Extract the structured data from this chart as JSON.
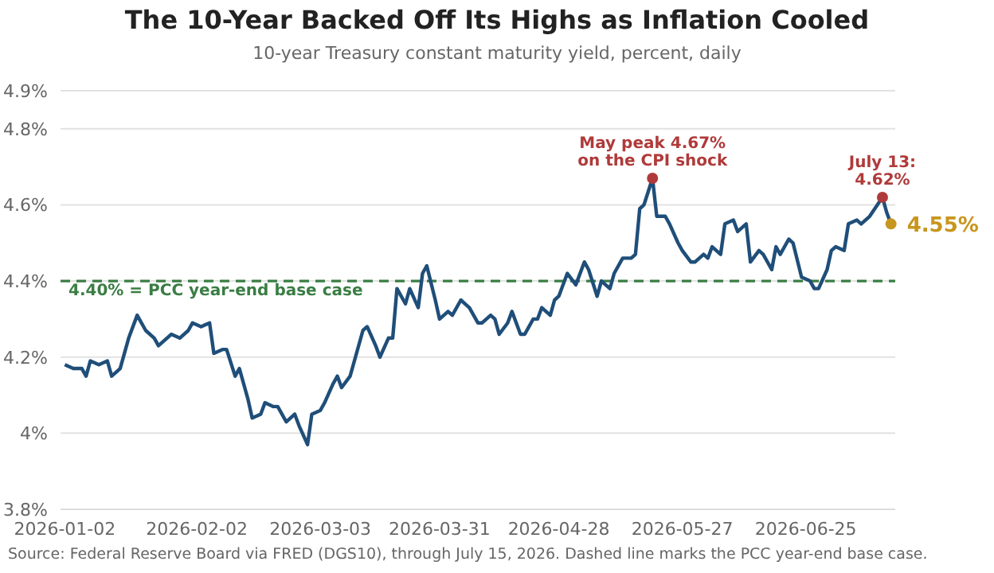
{
  "chart_data": {
    "type": "line",
    "title": "The 10-Year Backed Off Its Highs as Inflation Cooled",
    "subtitle": "10-year Treasury constant maturity yield, percent, daily",
    "x": [
      "2026-01-02",
      "2026-01-04",
      "2026-01-06",
      "2026-01-07",
      "2026-01-08",
      "2026-01-10",
      "2026-01-12",
      "2026-01-13",
      "2026-01-15",
      "2026-01-17",
      "2026-01-19",
      "2026-01-21",
      "2026-01-23",
      "2026-01-24",
      "2026-01-26",
      "2026-01-27",
      "2026-01-29",
      "2026-01-31",
      "2026-02-01",
      "2026-02-03",
      "2026-02-05",
      "2026-02-06",
      "2026-02-08",
      "2026-02-09",
      "2026-02-11",
      "2026-02-12",
      "2026-02-14",
      "2026-02-15",
      "2026-02-17",
      "2026-02-18",
      "2026-02-20",
      "2026-02-21",
      "2026-02-23",
      "2026-02-25",
      "2026-02-26",
      "2026-02-28",
      "2026-03-01",
      "2026-03-03",
      "2026-03-04",
      "2026-03-06",
      "2026-03-07",
      "2026-03-08",
      "2026-03-10",
      "2026-03-13",
      "2026-03-14",
      "2026-03-16",
      "2026-03-17",
      "2026-03-19",
      "2026-03-20",
      "2026-03-21",
      "2026-03-23",
      "2026-03-24",
      "2026-03-26",
      "2026-03-27",
      "2026-03-28",
      "2026-03-30",
      "2026-03-31",
      "2026-04-02",
      "2026-04-03",
      "2026-04-05",
      "2026-04-06",
      "2026-04-07",
      "2026-04-09",
      "2026-04-10",
      "2026-04-12",
      "2026-04-13",
      "2026-04-14",
      "2026-04-16",
      "2026-04-17",
      "2026-04-19",
      "2026-04-20",
      "2026-04-22",
      "2026-04-23",
      "2026-04-24",
      "2026-04-26",
      "2026-04-27",
      "2026-04-28",
      "2026-04-30",
      "2026-05-02",
      "2026-05-04",
      "2026-05-05",
      "2026-05-07",
      "2026-05-08",
      "2026-05-10",
      "2026-05-11",
      "2026-05-13",
      "2026-05-15",
      "2026-05-16",
      "2026-05-17",
      "2026-05-18",
      "2026-05-20",
      "2026-05-21",
      "2026-05-23",
      "2026-05-24",
      "2026-05-26",
      "2026-05-27",
      "2026-05-29",
      "2026-05-30",
      "2026-06-01",
      "2026-06-02",
      "2026-06-03",
      "2026-06-05",
      "2026-06-06",
      "2026-06-08",
      "2026-06-09",
      "2026-06-11",
      "2026-06-12",
      "2026-06-14",
      "2026-06-15",
      "2026-06-17",
      "2026-06-18",
      "2026-06-19",
      "2026-06-21",
      "2026-06-22",
      "2026-06-24",
      "2026-06-26",
      "2026-06-27",
      "2026-06-28",
      "2026-06-30",
      "2026-07-01",
      "2026-07-02",
      "2026-07-04",
      "2026-07-05",
      "2026-07-07",
      "2026-07-08",
      "2026-07-10",
      "2026-07-13",
      "2026-07-14",
      "2026-07-15"
    ],
    "series": [
      {
        "color": "#1f4e79",
        "values": [
          4.18,
          4.17,
          4.17,
          4.15,
          4.19,
          4.18,
          4.19,
          4.15,
          4.17,
          4.25,
          4.31,
          4.27,
          4.25,
          4.23,
          4.25,
          4.26,
          4.25,
          4.27,
          4.29,
          4.28,
          4.29,
          4.21,
          4.22,
          4.22,
          4.15,
          4.17,
          4.09,
          4.04,
          4.05,
          4.08,
          4.07,
          4.07,
          4.03,
          4.05,
          4.02,
          3.97,
          4.05,
          4.06,
          4.08,
          4.13,
          4.15,
          4.12,
          4.15,
          4.27,
          4.28,
          4.23,
          4.2,
          4.25,
          4.25,
          4.38,
          4.34,
          4.38,
          4.33,
          4.42,
          4.44,
          4.35,
          4.3,
          4.32,
          4.31,
          4.35,
          4.34,
          4.33,
          4.29,
          4.29,
          4.31,
          4.3,
          4.26,
          4.29,
          4.32,
          4.26,
          4.26,
          4.3,
          4.3,
          4.33,
          4.31,
          4.35,
          4.36,
          4.42,
          4.39,
          4.45,
          4.43,
          4.36,
          4.4,
          4.38,
          4.42,
          4.46,
          4.46,
          4.47,
          4.59,
          4.6,
          4.67,
          4.57,
          4.57,
          4.55,
          4.5,
          4.48,
          4.45,
          4.45,
          4.47,
          4.46,
          4.49,
          4.47,
          4.55,
          4.56,
          4.53,
          4.55,
          4.45,
          4.48,
          4.47,
          4.43,
          4.49,
          4.47,
          4.51,
          4.5,
          4.41,
          4.4,
          4.38,
          4.38,
          4.43,
          4.48,
          4.49,
          4.48,
          4.55,
          4.56,
          4.55,
          4.57,
          4.62,
          4.58,
          4.55
        ]
      }
    ],
    "xlim": [
      "2026-01-01",
      "2026-07-16"
    ],
    "xticks": [
      "2026-01-02",
      "2026-02-02",
      "2026-03-03",
      "2026-03-31",
      "2026-04-28",
      "2026-05-27",
      "2026-06-25"
    ],
    "ylim": [
      3.8,
      4.9
    ],
    "yticks": [
      {
        "value": 3.8,
        "label": "3.8%"
      },
      {
        "value": 4.0,
        "label": "4%"
      },
      {
        "value": 4.2,
        "label": "4.2%"
      },
      {
        "value": 4.4,
        "label": "4.4%"
      },
      {
        "value": 4.6,
        "label": "4.6%"
      },
      {
        "value": 4.8,
        "label": "4.8%"
      },
      {
        "value": 4.9,
        "label": "4.9%"
      }
    ],
    "grid": "y",
    "line_style": "solid",
    "ref_lines": [
      {
        "axis": "y",
        "value": 4.4,
        "label": "4.40% = PCC year-end base case",
        "color": "#3a7d44",
        "line_style": "dashed"
      }
    ],
    "annotations": [
      {
        "text": "May peak 4.67%\non the CPI shock",
        "x": "2026-05-20",
        "y": 4.67
      },
      {
        "text": "July 13:\n4.62%",
        "x": "2026-07-13",
        "y": 4.62
      },
      {
        "text": "4.55%",
        "x": "2026-07-15",
        "y": 4.55
      },
      "Source: Federal Reserve Board via FRED (DGS10), through July 15, 2026. Dashed line marks the PCC year-end base case."
    ]
  }
}
